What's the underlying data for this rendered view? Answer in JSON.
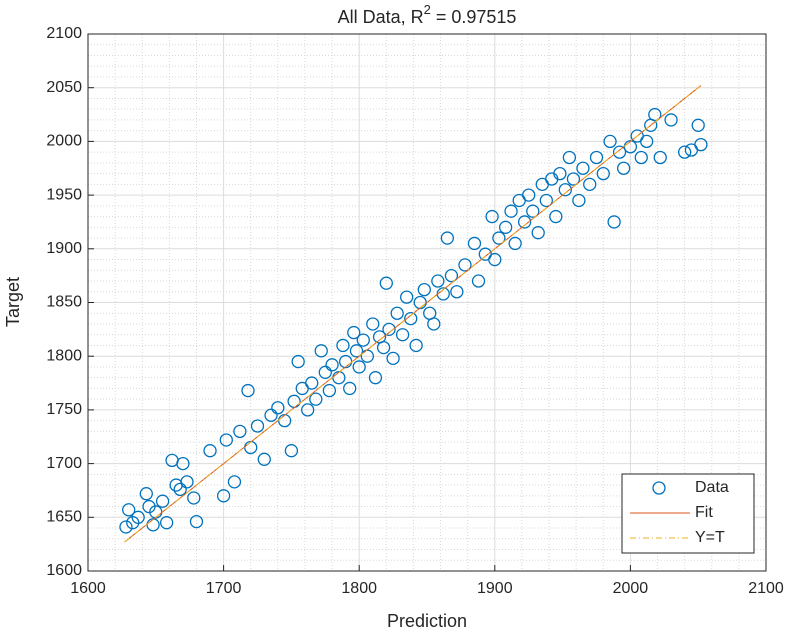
{
  "chart_data": {
    "type": "scatter",
    "title": [
      "All Data, R",
      "2",
      " = 0.97515"
    ],
    "x_label": "Prediction",
    "y_label": "Target",
    "xlim": [
      1600,
      2100
    ],
    "ylim": [
      1600,
      2100
    ],
    "xticks": [
      1600,
      1700,
      1800,
      1900,
      2000,
      2100
    ],
    "yticks": [
      1600,
      1650,
      1700,
      1750,
      1800,
      1850,
      1900,
      1950,
      2000,
      2050,
      2100
    ],
    "grid": true,
    "minor_grid": true,
    "legend": "lower right",
    "series": [
      {
        "name": "Data",
        "type": "scatter",
        "color": "#0072BD",
        "x": [
          1628,
          1630,
          1633,
          1637,
          1643,
          1645,
          1648,
          1650,
          1655,
          1658,
          1662,
          1665,
          1668,
          1670,
          1673,
          1678,
          1680,
          1690,
          1700,
          1702,
          1708,
          1712,
          1718,
          1720,
          1725,
          1730,
          1735,
          1740,
          1745,
          1750,
          1752,
          1755,
          1758,
          1762,
          1765,
          1768,
          1772,
          1775,
          1778,
          1780,
          1785,
          1788,
          1790,
          1793,
          1796,
          1798,
          1800,
          1803,
          1806,
          1810,
          1812,
          1815,
          1818,
          1820,
          1822,
          1825,
          1828,
          1832,
          1835,
          1838,
          1842,
          1845,
          1848,
          1852,
          1855,
          1858,
          1862,
          1865,
          1868,
          1872,
          1878,
          1885,
          1888,
          1893,
          1898,
          1900,
          1903,
          1908,
          1912,
          1915,
          1918,
          1922,
          1925,
          1928,
          1932,
          1935,
          1938,
          1942,
          1945,
          1948,
          1952,
          1955,
          1958,
          1962,
          1965,
          1970,
          1975,
          1980,
          1985,
          1988,
          1992,
          1995,
          2000,
          2005,
          2008,
          2012,
          2015,
          2018,
          2022,
          2030,
          2040,
          2045,
          2050,
          2052
        ],
        "values": [
          1641,
          1657,
          1645,
          1650,
          1672,
          1660,
          1643,
          1655,
          1665,
          1645,
          1703,
          1680,
          1676,
          1700,
          1683,
          1668,
          1646,
          1712,
          1670,
          1722,
          1683,
          1730,
          1768,
          1715,
          1735,
          1704,
          1745,
          1752,
          1740,
          1712,
          1758,
          1795,
          1770,
          1750,
          1775,
          1760,
          1805,
          1785,
          1768,
          1792,
          1780,
          1810,
          1795,
          1770,
          1822,
          1805,
          1790,
          1815,
          1800,
          1830,
          1780,
          1818,
          1808,
          1868,
          1825,
          1798,
          1840,
          1820,
          1855,
          1835,
          1810,
          1850,
          1862,
          1840,
          1830,
          1870,
          1858,
          1910,
          1875,
          1860,
          1885,
          1905,
          1870,
          1895,
          1930,
          1890,
          1910,
          1920,
          1935,
          1905,
          1945,
          1925,
          1950,
          1935,
          1915,
          1960,
          1945,
          1965,
          1930,
          1970,
          1955,
          1985,
          1965,
          1945,
          1975,
          1960,
          1985,
          1970,
          2000,
          1925,
          1990,
          1975,
          1995,
          2005,
          1985,
          2000,
          2015,
          2025,
          1985,
          2020,
          1990,
          1992,
          2015,
          1997
        ]
      },
      {
        "name": "Fit",
        "type": "line",
        "color": "#D95319",
        "dash": "none",
        "x": [
          1627,
          2052
        ],
        "values": [
          1627,
          2052
        ]
      },
      {
        "name": "Y=T",
        "type": "line",
        "color": "#EDB120",
        "dash": "6,3,1,3",
        "x": [
          1627,
          2052
        ],
        "values": [
          1627,
          2052
        ]
      }
    ]
  }
}
